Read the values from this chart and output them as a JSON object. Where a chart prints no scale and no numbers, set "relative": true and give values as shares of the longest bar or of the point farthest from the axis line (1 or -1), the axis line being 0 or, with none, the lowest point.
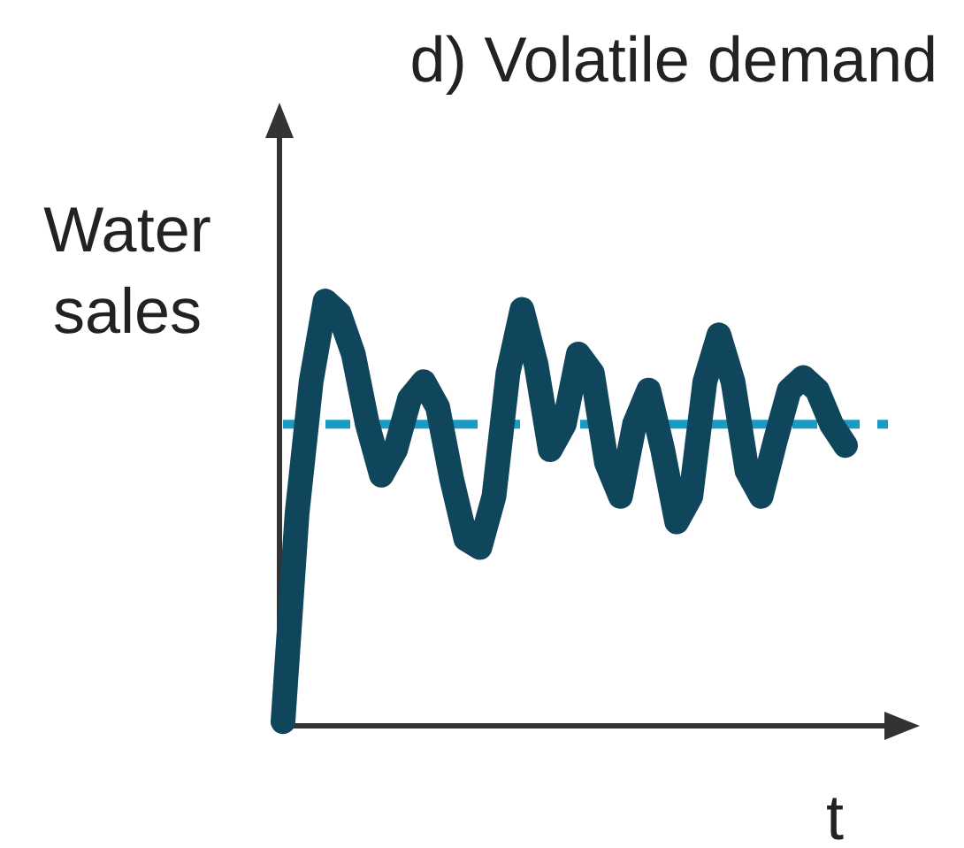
{
  "chart_data": {
    "type": "line",
    "title": "d) Volatile demand",
    "ylabel": "Water sales",
    "xlabel": "t",
    "relative": true,
    "categories": [
      null,
      null,
      null,
      null,
      null,
      null,
      null,
      null,
      null,
      null,
      null,
      null,
      null,
      null,
      null,
      null,
      null,
      null,
      null,
      null,
      null,
      null,
      null,
      null,
      null,
      null,
      null,
      null,
      null,
      null,
      null,
      null,
      null,
      null,
      null,
      null,
      null,
      null,
      null,
      null,
      null
    ],
    "series": [
      {
        "color": "#10465c",
        "values": [
          0.01,
          0.5,
          0.81,
          1,
          0.97,
          0.875,
          0.71,
          0.59,
          0.65,
          0.77,
          0.81,
          0.75,
          0.58,
          0.44,
          0.42,
          0.54,
          0.83,
          0.98,
          0.85,
          0.65,
          0.71,
          0.875,
          0.83,
          0.62,
          0.54,
          0.71,
          0.79,
          0.65,
          0.48,
          0.54,
          0.81,
          0.92,
          0.81,
          0.6,
          0.54,
          0.67,
          0.79,
          0.82,
          0.79,
          0.71,
          0.66
        ]
      }
    ],
    "ref_lines": [
      {
        "axis": "y",
        "value": 0.71,
        "color": "#1b9ac4",
        "line_style": "dashed"
      }
    ],
    "line_style": "solid"
  }
}
